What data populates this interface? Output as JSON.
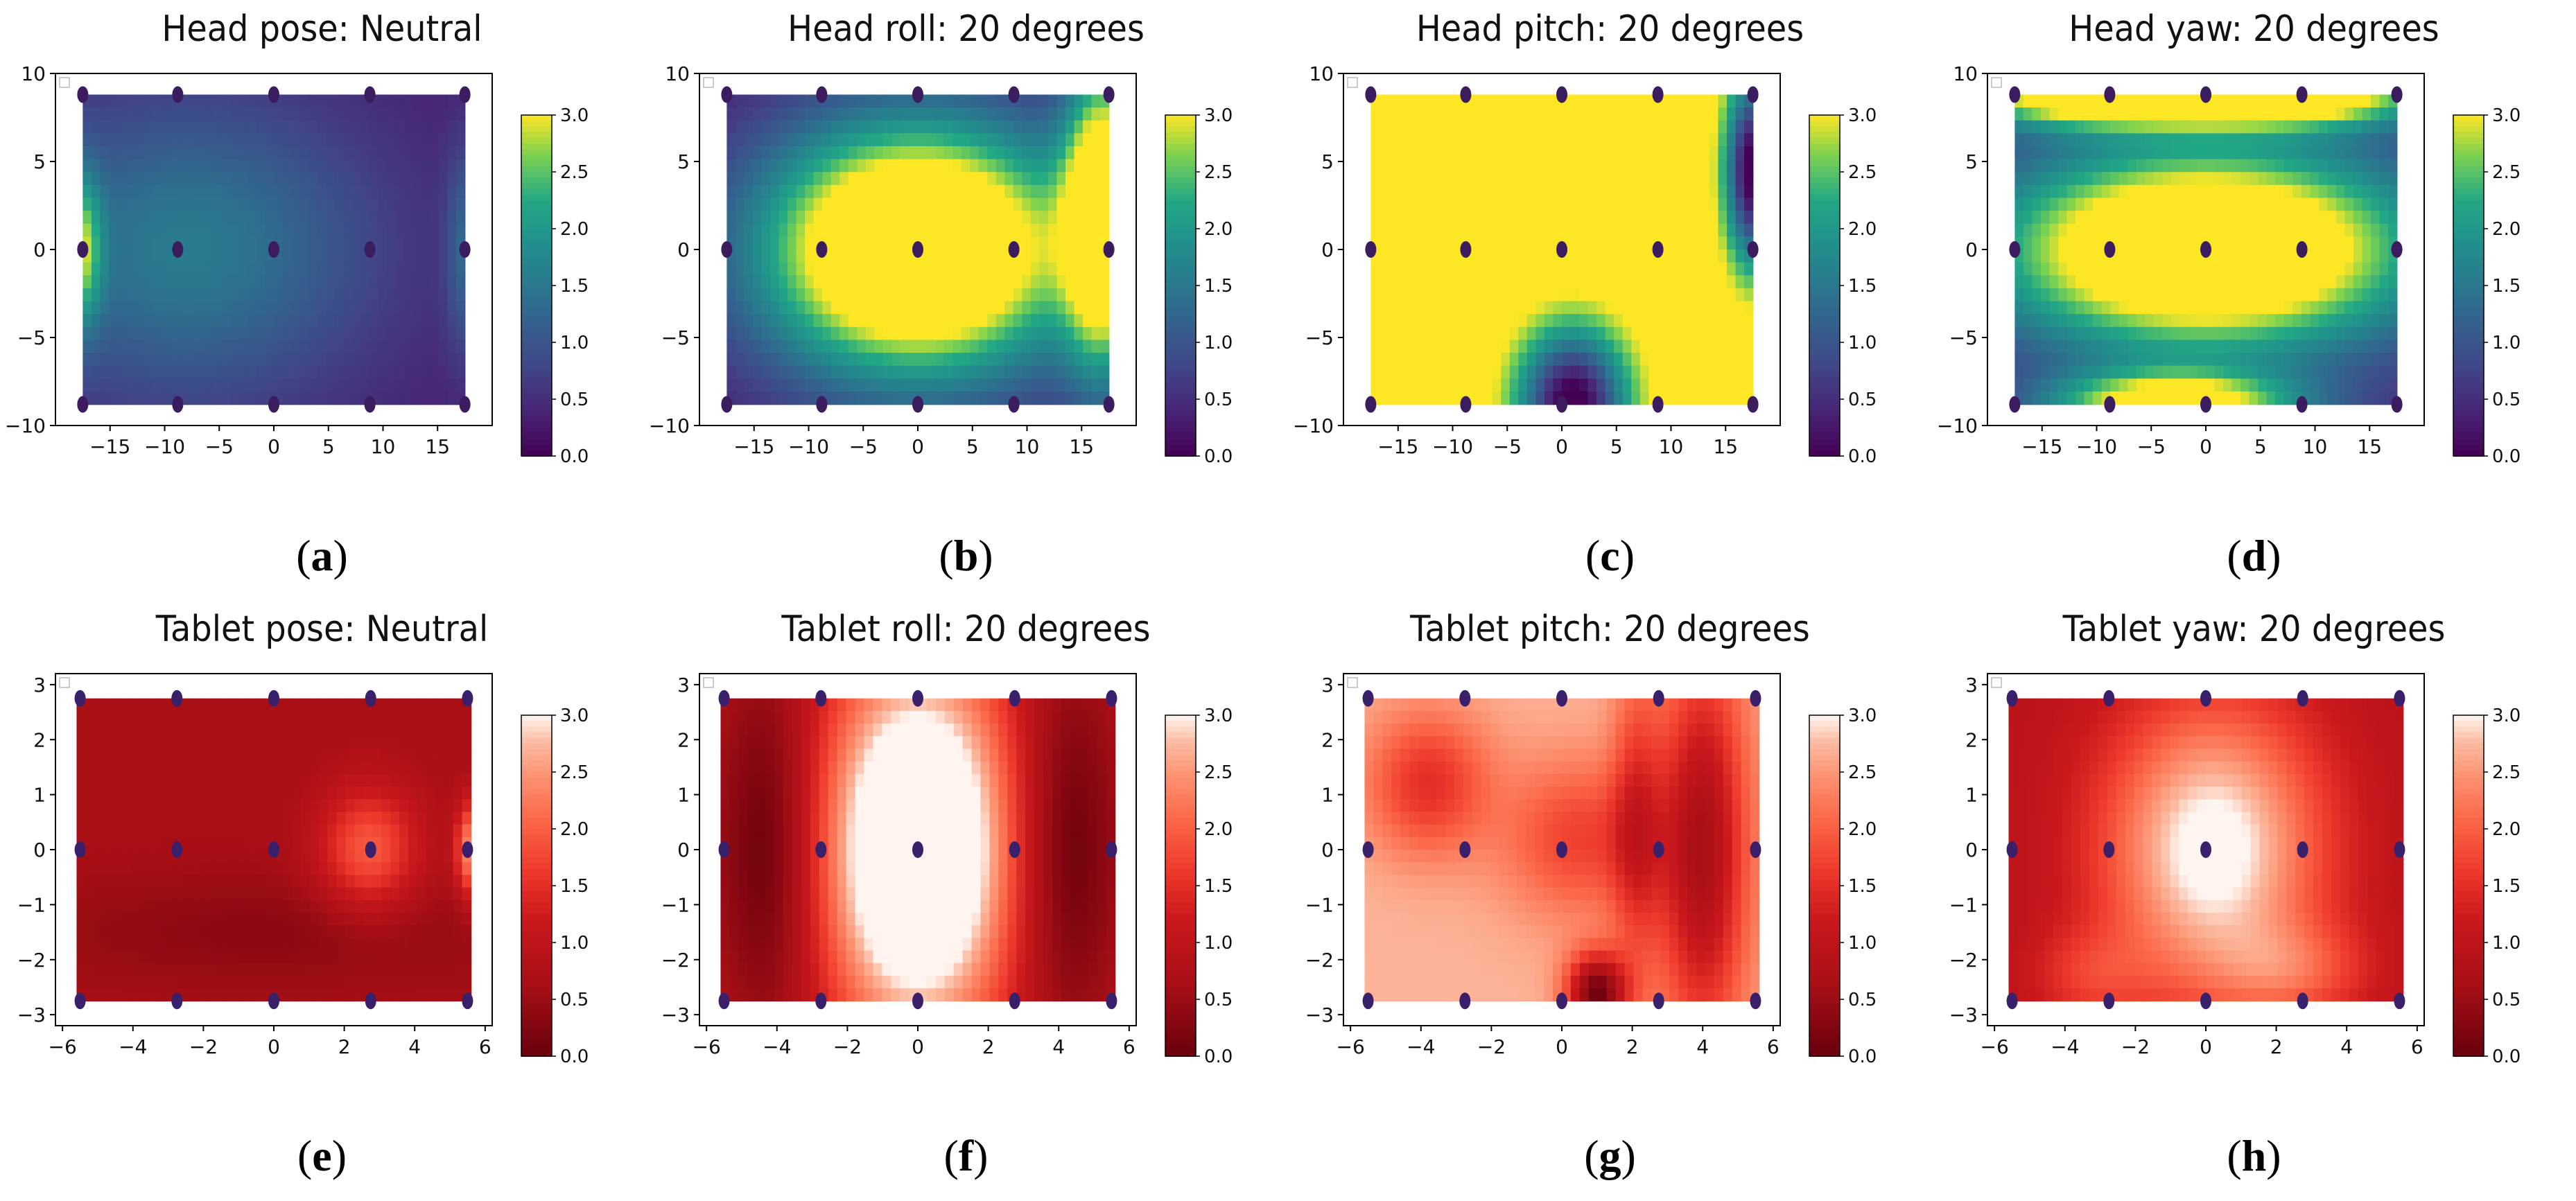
{
  "figure": "Eight heatmap panels with colorbars",
  "chart_data": [
    {
      "type": "heatmap",
      "id": "a",
      "label": "a",
      "title": "Head pose: Neutral",
      "cmap": "viridis",
      "xlim": [
        -20,
        20
      ],
      "ylim": [
        -10,
        10
      ],
      "xticks": [
        -15,
        -10,
        -5,
        0,
        5,
        10,
        15
      ],
      "yticks": [
        -10,
        -5,
        0,
        5,
        10
      ],
      "xtick_labels": [
        "−15",
        "−10",
        "−5",
        "0",
        "5",
        "10",
        "15"
      ],
      "ytick_labels": [
        "−10",
        "−5",
        "0",
        "5",
        "10"
      ],
      "extent": [
        -17.5,
        17.5,
        -8.8,
        8.8
      ],
      "colorbar": {
        "min": 0.0,
        "max": 3.0,
        "ticks": [
          "0.0",
          "0.5",
          "1.0",
          "1.5",
          "2.0",
          "2.5",
          "3.0"
        ]
      },
      "points": {
        "x": [
          -17.5,
          -8.8,
          0,
          8.8,
          17.5
        ],
        "y": [
          8.8,
          0,
          -8.8
        ]
      },
      "base": 0.35,
      "blobs": [
        {
          "x": -8,
          "y": 0,
          "v": 1.2,
          "sx": 12,
          "sy": 6
        },
        {
          "x": -17.5,
          "y": 0,
          "v": 1.7,
          "sx": 1.2,
          "sy": 3
        },
        {
          "x": 17.5,
          "y": 0,
          "v": 0.8,
          "sx": 1.2,
          "sy": 4
        }
      ]
    },
    {
      "type": "heatmap",
      "id": "b",
      "label": "b",
      "title": "Head roll: 20 degrees",
      "cmap": "viridis",
      "xlim": [
        -20,
        20
      ],
      "ylim": [
        -10,
        10
      ],
      "xticks": [
        -15,
        -10,
        -5,
        0,
        5,
        10,
        15
      ],
      "yticks": [
        -10,
        -5,
        0,
        5,
        10
      ],
      "xtick_labels": [
        "−15",
        "−10",
        "−5",
        "0",
        "5",
        "10",
        "15"
      ],
      "ytick_labels": [
        "−10",
        "−5",
        "0",
        "5",
        "10"
      ],
      "extent": [
        -17.5,
        17.5,
        -8.8,
        8.8
      ],
      "colorbar": {
        "min": 0.0,
        "max": 3.0,
        "ticks": [
          "0.0",
          "0.5",
          "1.0",
          "1.5",
          "2.0",
          "2.5",
          "3.0"
        ]
      },
      "points": {
        "x": [
          -17.5,
          -8.8,
          0,
          8.8,
          17.5
        ],
        "y": [
          8.8,
          0,
          -8.8
        ]
      },
      "base": 0.3,
      "blobs": [
        {
          "x": 0,
          "y": 0,
          "v": 4.5,
          "sx": 10,
          "sy": 5
        },
        {
          "x": 17,
          "y": 2,
          "v": 3.5,
          "sx": 2.5,
          "sy": 6
        }
      ]
    },
    {
      "type": "heatmap",
      "id": "c",
      "label": "c",
      "title": "Head pitch: 20 degrees",
      "cmap": "viridis",
      "xlim": [
        -20,
        20
      ],
      "ylim": [
        -10,
        10
      ],
      "xticks": [
        -15,
        -10,
        -5,
        0,
        5,
        10,
        15
      ],
      "yticks": [
        -10,
        -5,
        0,
        5,
        10
      ],
      "xtick_labels": [
        "−15",
        "−10",
        "−5",
        "0",
        "5",
        "10",
        "15"
      ],
      "ytick_labels": [
        "−10",
        "−5",
        "0",
        "5",
        "10"
      ],
      "extent": [
        -17.5,
        17.5,
        -8.8,
        8.8
      ],
      "colorbar": {
        "min": 0.0,
        "max": 3.0,
        "ticks": [
          "0.0",
          "0.5",
          "1.0",
          "1.5",
          "2.0",
          "2.5",
          "3.0"
        ]
      },
      "points": {
        "x": [
          -17.5,
          -8.8,
          0,
          8.8,
          17.5
        ],
        "y": [
          8.8,
          0,
          -8.8
        ]
      },
      "base": 3.4,
      "blobs": [
        {
          "x": 1,
          "y": -8.8,
          "v": -3.6,
          "sx": 3.5,
          "sy": 3
        },
        {
          "x": 17.5,
          "y": 4.5,
          "v": -3.6,
          "sx": 1.8,
          "sy": 3.8
        }
      ]
    },
    {
      "type": "heatmap",
      "id": "d",
      "label": "d",
      "title": "Head yaw: 20 degrees",
      "cmap": "viridis",
      "xlim": [
        -20,
        20
      ],
      "ylim": [
        -10,
        10
      ],
      "xticks": [
        -15,
        -10,
        -5,
        0,
        5,
        10,
        15
      ],
      "yticks": [
        -10,
        -5,
        0,
        5,
        10
      ],
      "xtick_labels": [
        "−15",
        "−10",
        "−5",
        "0",
        "5",
        "10",
        "15"
      ],
      "ytick_labels": [
        "−10",
        "−5",
        "0",
        "5",
        "10"
      ],
      "extent": [
        -17.5,
        17.5,
        -8.8,
        8.8
      ],
      "colorbar": {
        "min": 0.0,
        "max": 3.0,
        "ticks": [
          "0.0",
          "0.5",
          "1.0",
          "1.5",
          "2.0",
          "2.5",
          "3.0"
        ]
      },
      "points": {
        "x": [
          -17.5,
          -8.8,
          0,
          8.8,
          17.5
        ],
        "y": [
          8.8,
          0,
          -8.8
        ]
      },
      "base": 0.3,
      "blobs": [
        {
          "x": 0,
          "y": 0,
          "v": 4.2,
          "sx": 14,
          "sy": 4.2
        },
        {
          "x": -10,
          "y": 8.8,
          "v": 3.2,
          "sx": 9,
          "sy": 1.3
        },
        {
          "x": 8,
          "y": 8.8,
          "v": 3.2,
          "sx": 9,
          "sy": 1.3
        },
        {
          "x": -3,
          "y": -8.8,
          "v": 3.0,
          "sx": 8,
          "sy": 1.3
        }
      ]
    },
    {
      "type": "heatmap",
      "id": "e",
      "label": "e",
      "title": "Tablet pose: Neutral",
      "cmap": "reds_r",
      "xlim": [
        -6.2,
        6.2
      ],
      "ylim": [
        -3.2,
        3.2
      ],
      "xticks": [
        -6,
        -4,
        -2,
        0,
        2,
        4,
        6
      ],
      "yticks": [
        -3,
        -2,
        -1,
        0,
        1,
        2,
        3
      ],
      "xtick_labels": [
        "−6",
        "−4",
        "−2",
        "0",
        "2",
        "4",
        "6"
      ],
      "ytick_labels": [
        "−3",
        "−2",
        "−1",
        "0",
        "1",
        "2",
        "3"
      ],
      "extent": [
        -5.6,
        5.6,
        -2.75,
        2.75
      ],
      "colorbar": {
        "min": 0.0,
        "max": 3.0,
        "ticks": [
          "0.0",
          "0.5",
          "1.0",
          "1.5",
          "2.0",
          "2.5",
          "3.0"
        ]
      },
      "points": {
        "x": [
          -5.5,
          -2.75,
          0,
          2.75,
          5.5
        ],
        "y": [
          2.75,
          0,
          -2.75
        ]
      },
      "base": 0.65,
      "blobs": [
        {
          "x": 2.7,
          "y": 0,
          "v": 1.3,
          "sx": 1.0,
          "sy": 0.8
        },
        {
          "x": 5.6,
          "y": 0,
          "v": 1.8,
          "sx": 0.3,
          "sy": 0.6
        },
        {
          "x": 0,
          "y": -1.5,
          "v": -0.3,
          "sx": 5,
          "sy": 0.7
        }
      ]
    },
    {
      "type": "heatmap",
      "id": "f",
      "label": "f",
      "title": "Tablet roll: 20 degrees",
      "cmap": "reds_r",
      "xlim": [
        -6.2,
        6.2
      ],
      "ylim": [
        -3.2,
        3.2
      ],
      "xticks": [
        -6,
        -4,
        -2,
        0,
        2,
        4,
        6
      ],
      "yticks": [
        -3,
        -2,
        -1,
        0,
        1,
        2,
        3
      ],
      "xtick_labels": [
        "−6",
        "−4",
        "−2",
        "0",
        "2",
        "4",
        "6"
      ],
      "ytick_labels": [
        "−3",
        "−2",
        "−1",
        "0",
        "1",
        "2",
        "3"
      ],
      "extent": [
        -5.6,
        5.6,
        -2.75,
        2.75
      ],
      "colorbar": {
        "min": 0.0,
        "max": 3.0,
        "ticks": [
          "0.0",
          "0.5",
          "1.0",
          "1.5",
          "2.0",
          "2.5",
          "3.0"
        ]
      },
      "points": {
        "x": [
          -5.5,
          -2.75,
          0,
          2.75,
          5.5
        ],
        "y": [
          2.75,
          0,
          -2.75
        ]
      },
      "base": 0.9,
      "blobs": [
        {
          "x": 0,
          "y": 0,
          "v": 3.5,
          "sx": 1.9,
          "sy": 2.4
        },
        {
          "x": -4.2,
          "y": 0,
          "v": -1.0,
          "sx": 1.1,
          "sy": 2.5
        },
        {
          "x": 4.2,
          "y": 0,
          "v": -1.0,
          "sx": 1.1,
          "sy": 2.5
        }
      ]
    },
    {
      "type": "heatmap",
      "id": "g",
      "label": "g",
      "title": "Tablet pitch: 20 degrees",
      "cmap": "reds_r",
      "xlim": [
        -6.2,
        6.2
      ],
      "ylim": [
        -3.2,
        3.2
      ],
      "xticks": [
        -6,
        -4,
        -2,
        0,
        2,
        4,
        6
      ],
      "yticks": [
        -3,
        -2,
        -1,
        0,
        1,
        2,
        3
      ],
      "xtick_labels": [
        "−6",
        "−4",
        "−2",
        "0",
        "2",
        "4",
        "6"
      ],
      "ytick_labels": [
        "−3",
        "−2",
        "−1",
        "0",
        "1",
        "2",
        "3"
      ],
      "extent": [
        -5.6,
        5.6,
        -2.75,
        2.75
      ],
      "colorbar": {
        "min": 0.0,
        "max": 3.0,
        "ticks": [
          "0.0",
          "0.5",
          "1.0",
          "1.5",
          "2.0",
          "2.5",
          "3.0"
        ]
      },
      "points": {
        "x": [
          -5.5,
          -2.75,
          0,
          2.75,
          5.5
        ],
        "y": [
          2.75,
          0,
          -2.75
        ]
      },
      "base": 2.7,
      "blobs": [
        {
          "x": -3.8,
          "y": 1.2,
          "v": -1.2,
          "sx": 1.2,
          "sy": 0.9
        },
        {
          "x": 0.5,
          "y": 0.2,
          "v": -1.0,
          "sx": 1.5,
          "sy": 1.0
        },
        {
          "x": 4.0,
          "y": 0,
          "v": -2.0,
          "sx": 0.9,
          "sy": 2.5
        },
        {
          "x": 1.0,
          "y": -2.6,
          "v": -2.6,
          "sx": 0.6,
          "sy": 0.5
        },
        {
          "x": 2.1,
          "y": 0.5,
          "v": -1.0,
          "sx": 0.5,
          "sy": 2.0
        }
      ]
    },
    {
      "type": "heatmap",
      "id": "h",
      "label": "h",
      "title": "Tablet yaw: 20 degrees",
      "cmap": "reds_r",
      "xlim": [
        -6.2,
        6.2
      ],
      "ylim": [
        -3.2,
        3.2
      ],
      "xticks": [
        -6,
        -4,
        -2,
        0,
        2,
        4,
        6
      ],
      "yticks": [
        -3,
        -2,
        -1,
        0,
        1,
        2,
        3
      ],
      "xtick_labels": [
        "−6",
        "−4",
        "−2",
        "0",
        "2",
        "4",
        "6"
      ],
      "ytick_labels": [
        "−3",
        "−2",
        "−1",
        "0",
        "1",
        "2",
        "3"
      ],
      "extent": [
        -5.6,
        5.6,
        -2.75,
        2.75
      ],
      "colorbar": {
        "min": 0.0,
        "max": 3.0,
        "ticks": [
          "0.0",
          "0.5",
          "1.0",
          "1.5",
          "2.0",
          "2.5",
          "3.0"
        ]
      },
      "points": {
        "x": [
          -5.5,
          -2.75,
          0,
          2.75,
          5.5
        ],
        "y": [
          2.75,
          0,
          -2.75
        ]
      },
      "base": 0.9,
      "blobs": [
        {
          "x": 0.2,
          "y": 0,
          "v": 2.3,
          "sx": 2.2,
          "sy": 1.9
        },
        {
          "x": -3.3,
          "y": -2.3,
          "v": 0.6,
          "sx": 1.2,
          "sy": 0.6
        },
        {
          "x": 2.5,
          "y": -2.2,
          "v": 0.8,
          "sx": 1.5,
          "sy": 0.6
        }
      ]
    }
  ]
}
